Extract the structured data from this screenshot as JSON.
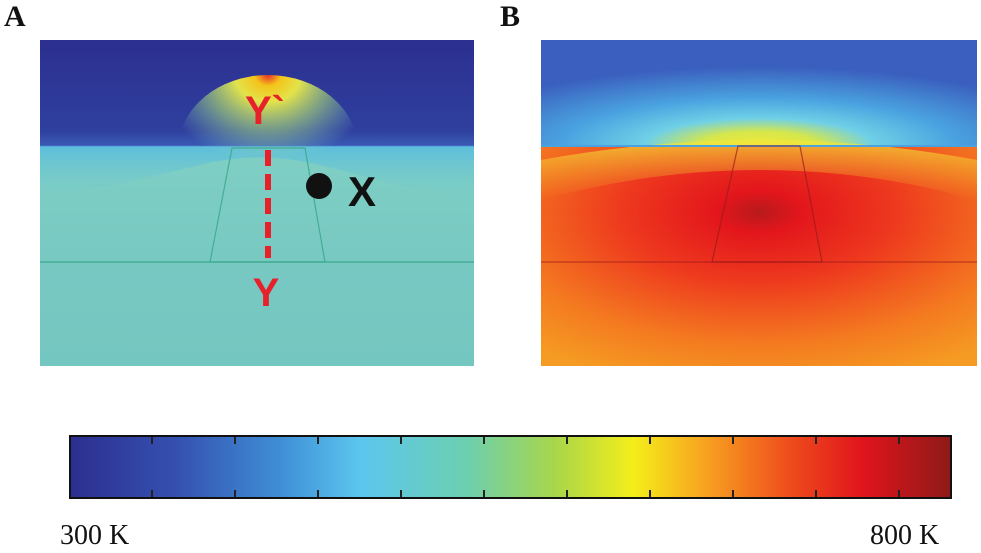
{
  "panels": {
    "a_label": "A",
    "b_label": "B"
  },
  "annotations": {
    "top_marker": "Y`",
    "bottom_marker": "Y",
    "point_marker": "X"
  },
  "colorbar": {
    "min_label": "300 K",
    "max_label": "800 K",
    "min_value": 300,
    "max_value": 800,
    "colors": [
      "#2c2f8f",
      "#3b55b8",
      "#3f8fd6",
      "#5cc6ee",
      "#6ccfb0",
      "#a8d64a",
      "#f4ee1a",
      "#f7a320",
      "#ee4a1c",
      "#e0141c",
      "#8e1a18"
    ]
  },
  "colors": {
    "annotation_red": "#e8202a",
    "annotation_black": "#111111"
  }
}
